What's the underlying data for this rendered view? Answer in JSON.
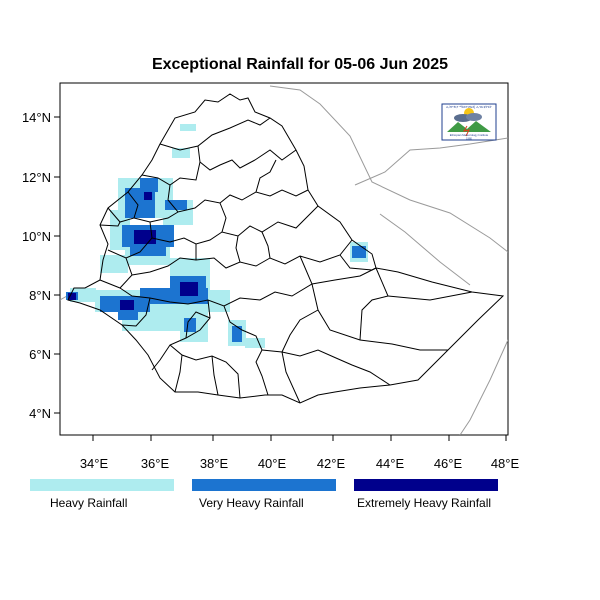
{
  "title": "Exceptional Rainfall for 05-06 Jun 2025",
  "axes": {
    "lon_ticks": [
      "34°E",
      "36°E",
      "38°E",
      "40°E",
      "42°E",
      "44°E",
      "46°E",
      "48°E"
    ],
    "lat_ticks": [
      "14°N",
      "12°N",
      "10°N",
      "8°N",
      "6°N",
      "4°N"
    ],
    "lon_range": [
      33,
      48
    ],
    "lat_range": [
      3,
      15
    ]
  },
  "legend": [
    {
      "label": "Heavy Rainfall",
      "color": "#aeecef"
    },
    {
      "label": "Very Heavy Rainfall",
      "color": "#1c74d0"
    },
    {
      "label": "Extremely Heavy Rainfall",
      "color": "#00008c"
    }
  ],
  "logo": {
    "top_text": "ኢትዮጵያ ሜቴዎሮሎጂ ኢንስቲትዩት",
    "bottom_text": "Ethiopian Meteorology Institute",
    "year": "1980",
    "icon": "meteorology-institute-logo"
  },
  "colors": {
    "heavy": "#aeecef",
    "very_heavy": "#1c74d0",
    "extreme": "#00008c",
    "border": "#000000",
    "neighbor_border": "#9a9a9a"
  }
}
